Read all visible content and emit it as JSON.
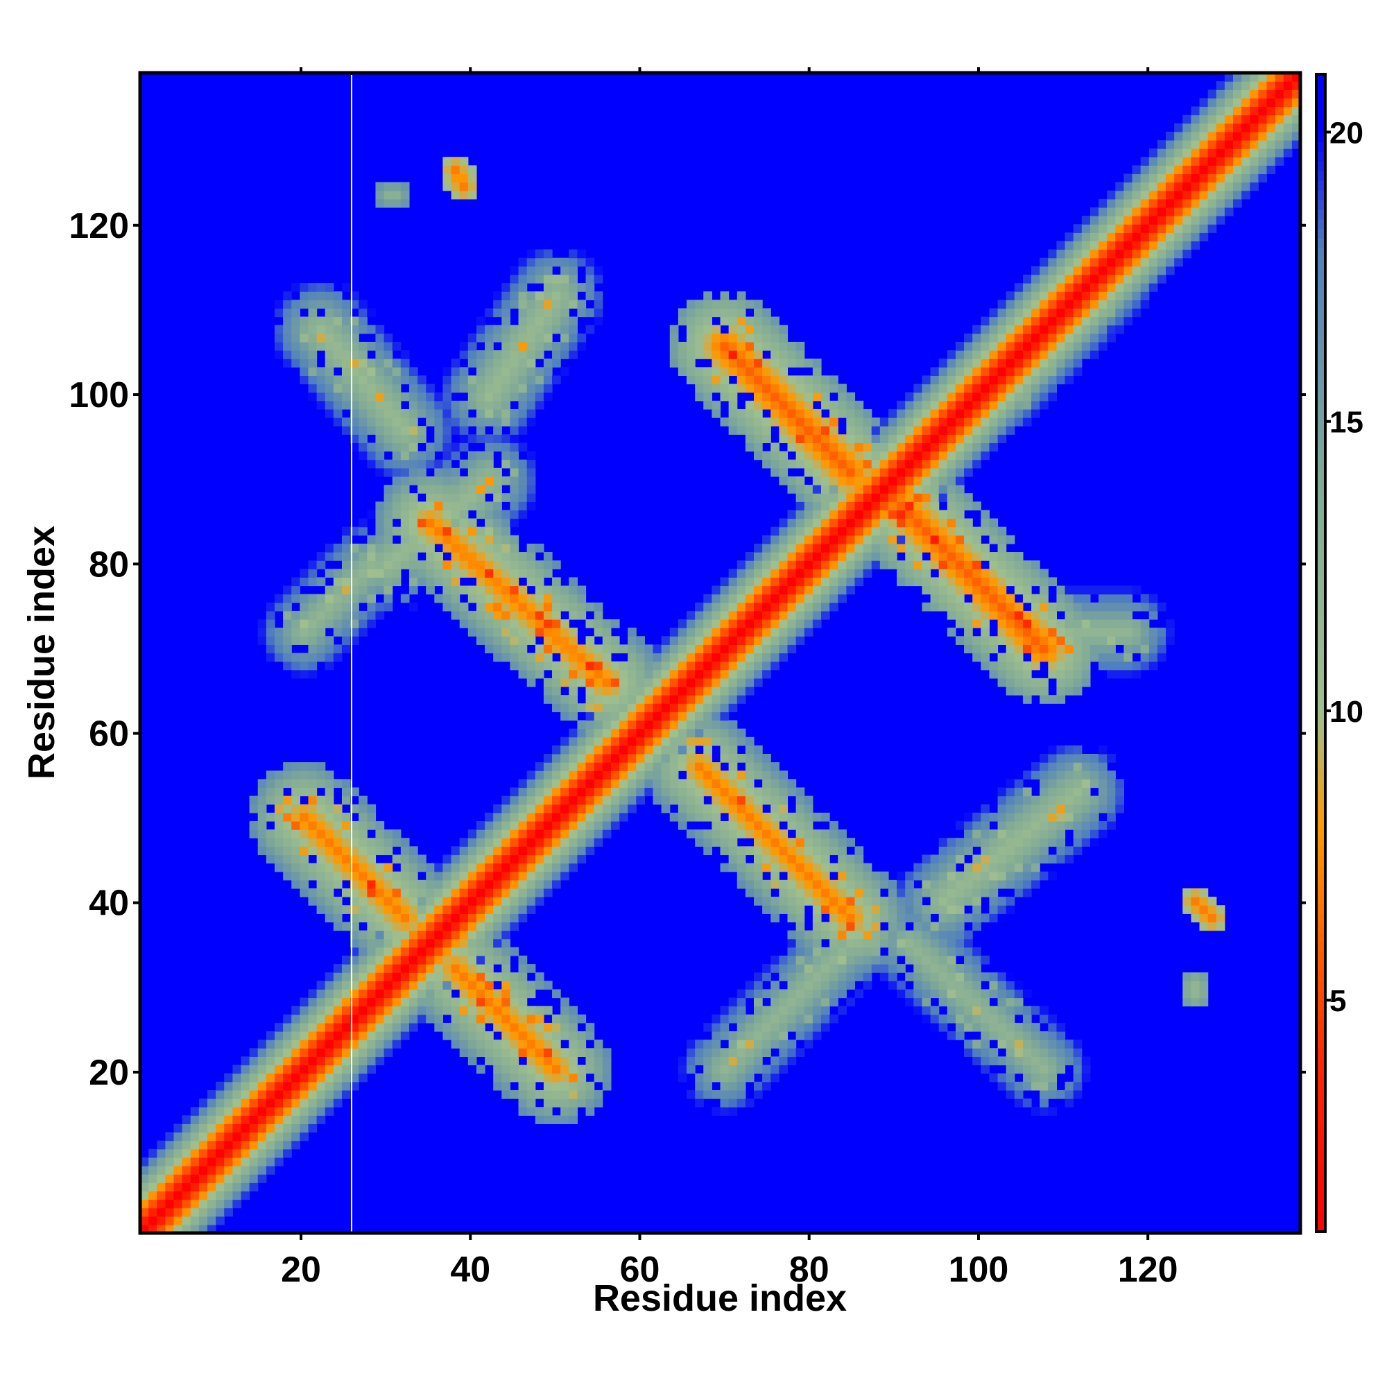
{
  "chart_data": {
    "type": "heatmap",
    "title": "",
    "xlabel": "Residue index",
    "ylabel": "Residue index",
    "xlim": [
      1,
      138
    ],
    "ylim": [
      1,
      138
    ],
    "x_ticks": [
      20,
      40,
      60,
      80,
      100,
      120
    ],
    "y_ticks": [
      20,
      40,
      60,
      80,
      100,
      120
    ],
    "colorbar": {
      "range": [
        1,
        21
      ],
      "ticks": [
        5,
        10,
        15,
        20
      ],
      "colors": [
        "#ff0000",
        "#ff9900",
        "#9fbf8f",
        "#4f7fbf",
        "#0000ff"
      ]
    },
    "background_value": 21,
    "features": [
      {
        "name": "main-diagonal",
        "start": [
          1,
          1
        ],
        "end": [
          138,
          138
        ],
        "value": 1
      },
      {
        "name": "band",
        "start": [
          20,
          50
        ],
        "end": [
          32,
          38
        ],
        "value": 7
      },
      {
        "name": "band",
        "start": [
          38,
          32
        ],
        "end": [
          50,
          20
        ],
        "value": 7
      },
      {
        "name": "band",
        "start": [
          42,
          90
        ],
        "end": [
          30,
          80
        ],
        "value": 11
      },
      {
        "name": "band",
        "start": [
          35,
          85
        ],
        "end": [
          56,
          66
        ],
        "value": 7
      },
      {
        "name": "band",
        "start": [
          42,
          100
        ],
        "end": [
          50,
          112
        ],
        "value": 11
      },
      {
        "name": "band",
        "start": [
          22,
          108
        ],
        "end": [
          32,
          96
        ],
        "value": 11
      },
      {
        "name": "band",
        "start": [
          20,
          72
        ],
        "end": [
          28,
          80
        ],
        "value": 12
      },
      {
        "name": "band",
        "start": [
          67,
          56
        ],
        "end": [
          85,
          38
        ],
        "value": 7
      },
      {
        "name": "band",
        "start": [
          70,
          106
        ],
        "end": [
          85,
          91
        ],
        "value": 6
      },
      {
        "name": "band",
        "start": [
          70,
          20
        ],
        "end": [
          86,
          36
        ],
        "value": 12
      },
      {
        "name": "band",
        "start": [
          90,
          88
        ],
        "end": [
          108,
          70
        ],
        "value": 6
      },
      {
        "name": "band",
        "start": [
          92,
          35
        ],
        "end": [
          108,
          20
        ],
        "value": 12
      },
      {
        "name": "band",
        "start": [
          96,
          40
        ],
        "end": [
          112,
          53
        ],
        "value": 11
      },
      {
        "name": "band",
        "start": [
          102,
          100
        ],
        "end": [
          116,
          114
        ],
        "value": 12
      },
      {
        "name": "band",
        "start": [
          110,
          72
        ],
        "end": [
          118,
          72
        ],
        "value": 12
      },
      {
        "name": "blob",
        "start": [
          38,
          127
        ],
        "end": [
          39,
          125
        ],
        "value": 7
      },
      {
        "name": "blob",
        "start": [
          30,
          124
        ],
        "end": [
          31,
          124
        ],
        "value": 13
      },
      {
        "name": "blob",
        "start": [
          126,
          40
        ],
        "end": [
          128,
          38
        ],
        "value": 7
      },
      {
        "name": "blob",
        "start": [
          126,
          30
        ],
        "end": [
          126,
          29
        ],
        "value": 12
      }
    ]
  }
}
